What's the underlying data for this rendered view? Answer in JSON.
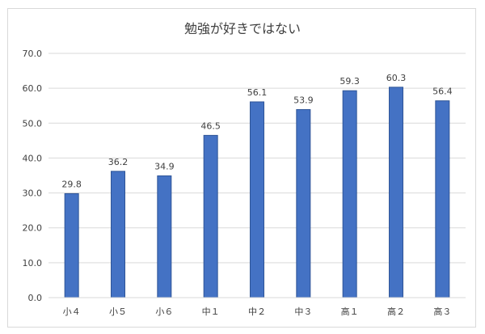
{
  "chart_data": {
    "type": "bar",
    "title": "勉強が好きではない",
    "categories": [
      "小４",
      "小５",
      "小６",
      "中１",
      "中２",
      "中３",
      "高１",
      "高２",
      "高３"
    ],
    "values": [
      29.8,
      36.2,
      34.9,
      46.5,
      56.1,
      53.9,
      59.3,
      60.3,
      56.4
    ],
    "value_labels": [
      "29.8",
      "36.2",
      "34.9",
      "46.5",
      "56.1",
      "53.9",
      "59.3",
      "60.3",
      "56.4"
    ],
    "ylim": [
      0,
      70
    ],
    "yticks": [
      "0.0",
      "10.0",
      "20.0",
      "30.0",
      "40.0",
      "50.0",
      "60.0",
      "70.0"
    ],
    "grid": true,
    "bar_color": "#4472c4",
    "bar_edge_color": "#2f5597"
  }
}
